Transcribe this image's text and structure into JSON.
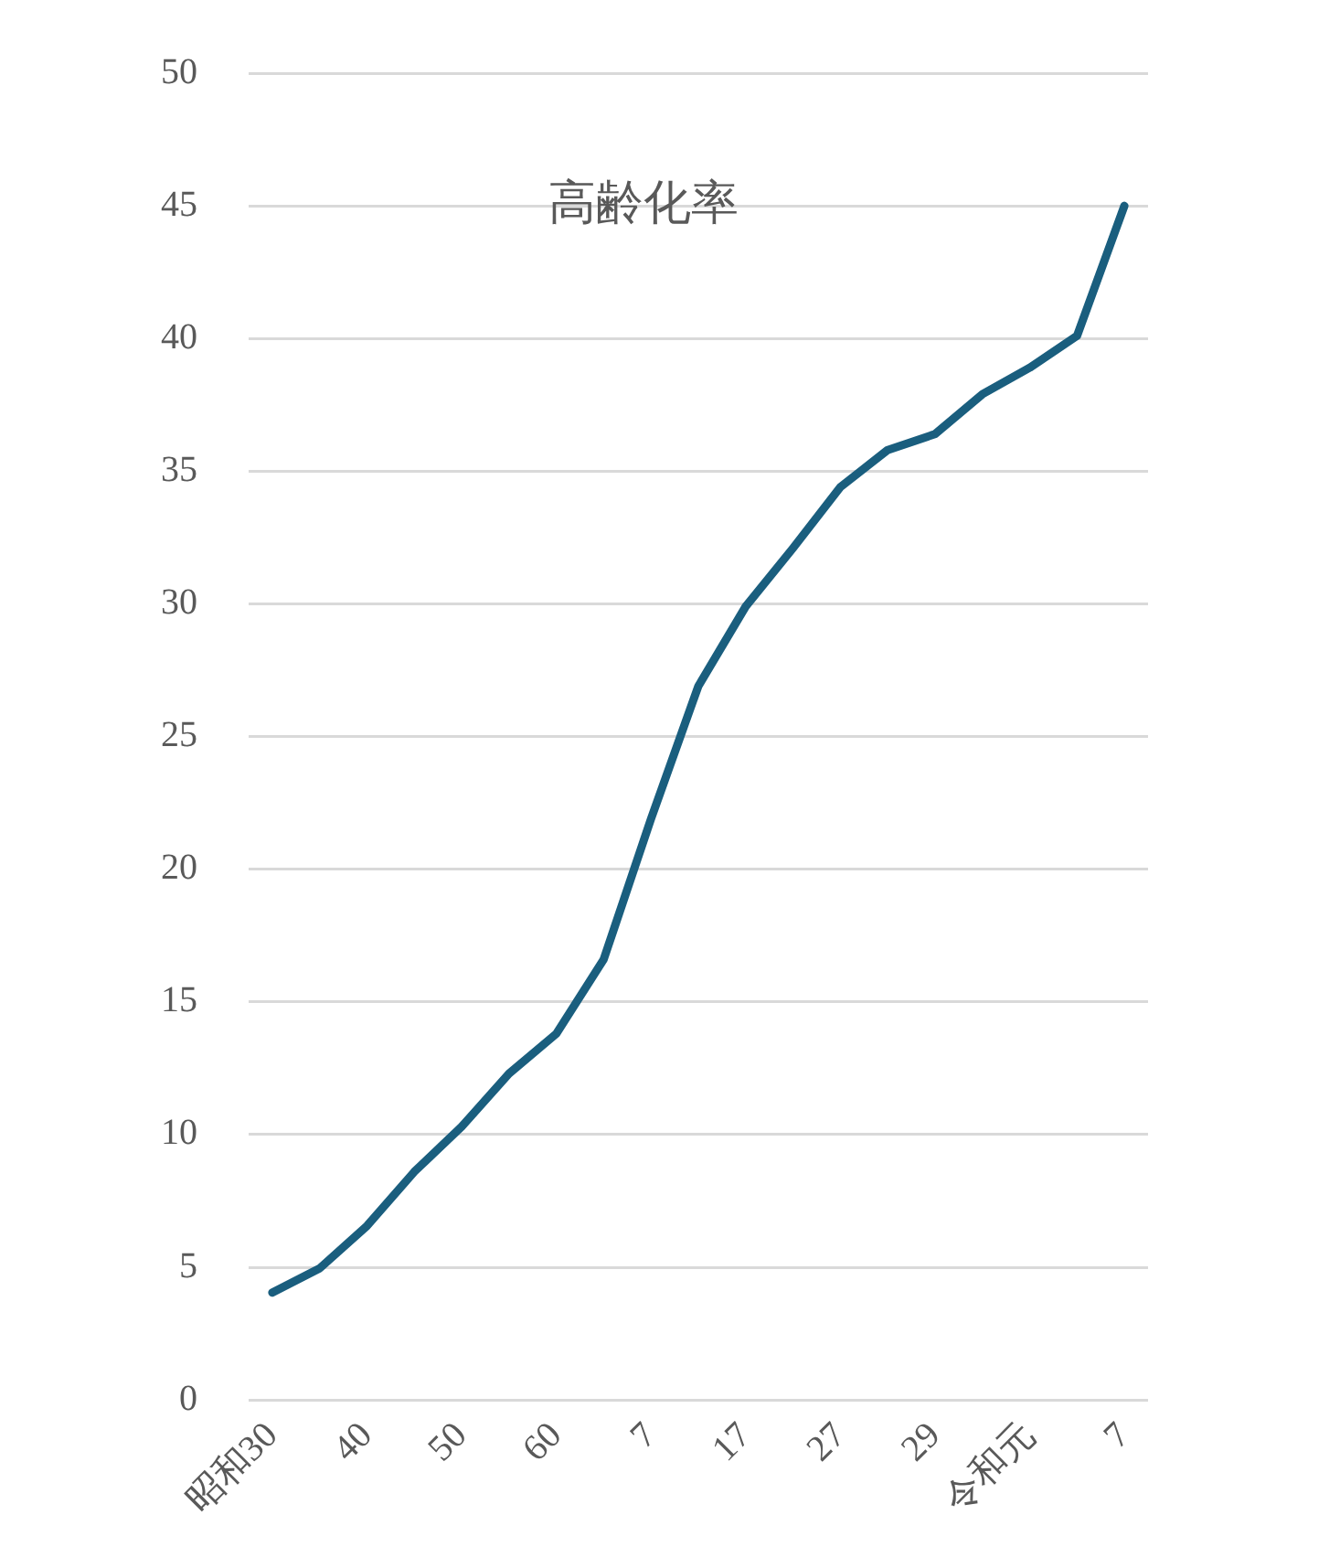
{
  "chart_data": {
    "type": "line",
    "title": "高齢化率",
    "categories": [
      "昭和30",
      null,
      "40",
      null,
      "50",
      null,
      "60",
      null,
      "7",
      null,
      "17",
      null,
      "27",
      null,
      "29",
      null,
      "令和元",
      null,
      "7"
    ],
    "series": [
      {
        "color": "#1a5e7e",
        "values": [
          4.05,
          4.96,
          6.56,
          8.6,
          10.3,
          12.3,
          13.8,
          16.6,
          21.9,
          26.9,
          29.9,
          32.1,
          34.4,
          35.8,
          36.4,
          37.9,
          38.9,
          40.1,
          45.0
        ]
      }
    ],
    "ylim": [
      0,
      50
    ],
    "yticks": [
      0,
      5,
      10,
      15,
      20,
      25,
      30,
      35,
      40,
      45,
      50
    ],
    "grid": "y",
    "legend": false,
    "marker": "none",
    "line_style": "solid"
  }
}
